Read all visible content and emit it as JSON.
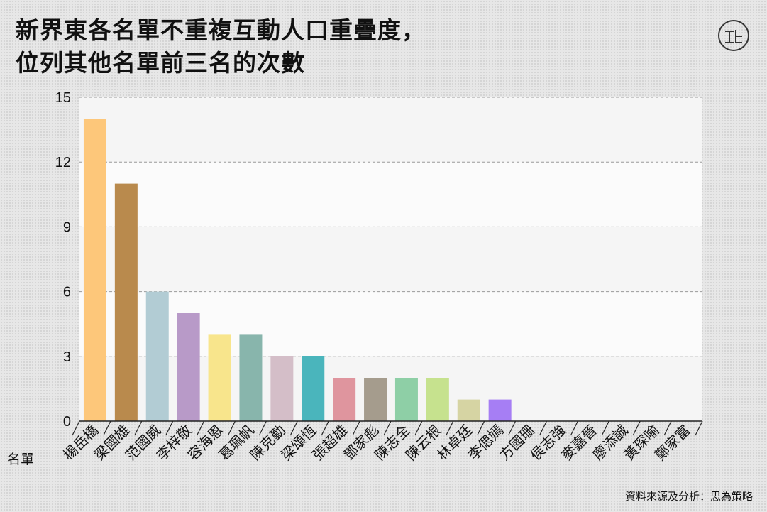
{
  "header": {
    "title_line1": "新界東各名單不重複互動人口重疊度，",
    "title_line2": "位列其他名單前三名的次數"
  },
  "footer": {
    "source": "資料來源及分析：思為策略"
  },
  "chart_data": {
    "type": "bar",
    "title": "新界東各名單不重複互動人口重疊度，位列其他名單前三名的次數",
    "xlabel": "名單",
    "ylabel": "",
    "ylim": [
      0,
      15
    ],
    "yticks": [
      0,
      3,
      6,
      9,
      12,
      15
    ],
    "grid": true,
    "categories": [
      "楊岳橋",
      "梁國雄",
      "范國威",
      "李梓敬",
      "容海恩",
      "葛珮帆",
      "陳克勤",
      "梁頌恆",
      "張超雄",
      "鄧家彪",
      "陳志全",
      "陳云根",
      "林卓廷",
      "李偲嫣",
      "方國珊",
      "侯志強",
      "麥嘉晉",
      "廖添誠",
      "黃琛喻",
      "鄭家富"
    ],
    "values": [
      14,
      11,
      6,
      5,
      4,
      4,
      3,
      3,
      2,
      2,
      2,
      2,
      1,
      1,
      0,
      0,
      0,
      0,
      0,
      0
    ],
    "colors": [
      "#fdc77a",
      "#b98a4d",
      "#b2ccd4",
      "#b89ac8",
      "#f8e58c",
      "#88b5ac",
      "#d4bec8",
      "#4ab5bc",
      "#df959e",
      "#a59c8d",
      "#8ecfa6",
      "#c6e28e",
      "#d6d4a3",
      "#a67ef4",
      "#cccccc",
      "#cccccc",
      "#cccccc",
      "#cccccc",
      "#cccccc",
      "#cccccc"
    ]
  }
}
